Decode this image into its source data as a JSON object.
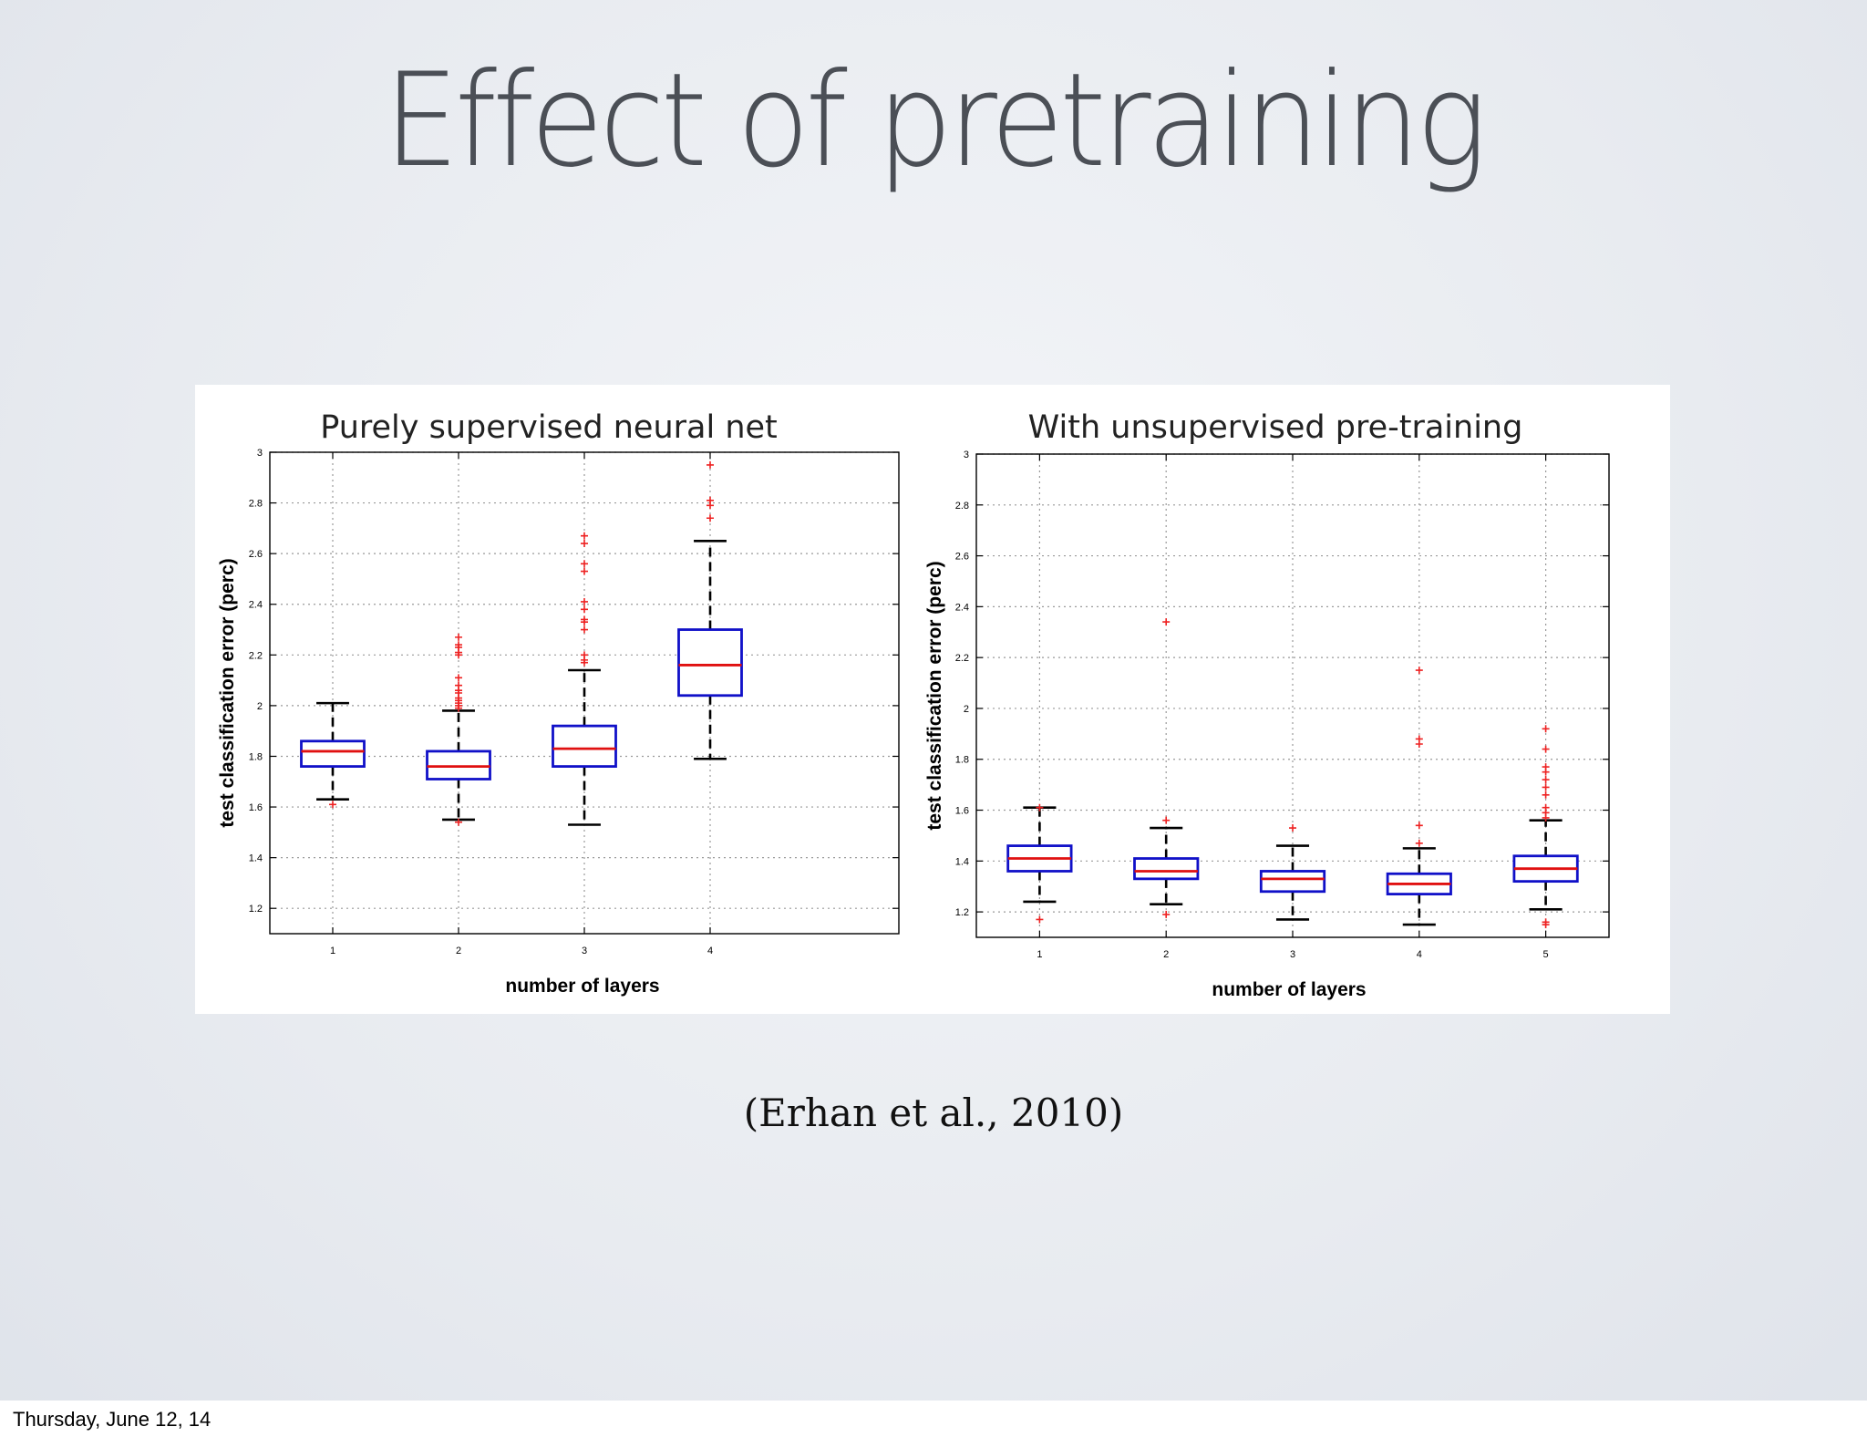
{
  "slide": {
    "title": "Effect of pretraining",
    "citation": "(Erhan et al., 2010)",
    "footer_date": "Thursday, June 12, 14"
  },
  "colors": {
    "box": "#1010c8",
    "median": "#e01010",
    "whisker": "#000000",
    "outlier": "#ee2222",
    "grid": "#999999"
  },
  "chart_data": [
    {
      "type": "box",
      "title": "Purely supervised neural net",
      "xlabel": "number of layers",
      "ylabel": "test classification error (perc)",
      "ylim": [
        1.1,
        3.0
      ],
      "xlim": [
        0.5,
        5.5
      ],
      "grid": true,
      "y_ticks": [
        "1.2",
        "1.4",
        "1.6",
        "1.8",
        "2",
        "2.2",
        "2.4",
        "2.6",
        "2.8",
        "3"
      ],
      "x_ticks": [
        "1",
        "2",
        "3",
        "4"
      ],
      "boxes": [
        {
          "x": 1,
          "whislo": 1.63,
          "q1": 1.76,
          "med": 1.82,
          "q3": 1.86,
          "whishi": 2.01,
          "fliers": [
            1.61
          ]
        },
        {
          "x": 2,
          "whislo": 1.55,
          "q1": 1.71,
          "med": 1.76,
          "q3": 1.82,
          "whishi": 1.98,
          "fliers": [
            1.54,
            1.99,
            2.0,
            2.01,
            2.02,
            2.03,
            2.05,
            2.06,
            2.08,
            2.11,
            2.2,
            2.21,
            2.23,
            2.24,
            2.27
          ]
        },
        {
          "x": 3,
          "whislo": 1.53,
          "q1": 1.76,
          "med": 1.83,
          "q3": 1.92,
          "whishi": 2.14,
          "fliers": [
            2.17,
            2.18,
            2.2,
            2.3,
            2.33,
            2.34,
            2.38,
            2.41,
            2.53,
            2.56,
            2.64,
            2.67
          ]
        },
        {
          "x": 4,
          "whislo": 1.79,
          "q1": 2.04,
          "med": 2.16,
          "q3": 2.3,
          "whishi": 2.65,
          "fliers": [
            2.74,
            2.79,
            2.81,
            2.95
          ]
        }
      ]
    },
    {
      "type": "box",
      "title": "With unsupervised pre-training",
      "xlabel": "number of layers",
      "ylabel": "test classification error (perc)",
      "ylim": [
        1.1,
        3.0
      ],
      "xlim": [
        0.5,
        5.5
      ],
      "grid": true,
      "y_ticks": [
        "1.2",
        "1.4",
        "1.6",
        "1.8",
        "2",
        "2.2",
        "2.4",
        "2.6",
        "2.8",
        "3"
      ],
      "x_ticks": [
        "1",
        "2",
        "3",
        "4",
        "5"
      ],
      "boxes": [
        {
          "x": 1,
          "whislo": 1.24,
          "q1": 1.36,
          "med": 1.41,
          "q3": 1.46,
          "whishi": 1.61,
          "fliers": [
            1.17,
            1.61
          ]
        },
        {
          "x": 2,
          "whislo": 1.23,
          "q1": 1.33,
          "med": 1.36,
          "q3": 1.41,
          "whishi": 1.53,
          "fliers": [
            1.19,
            1.56,
            2.34
          ]
        },
        {
          "x": 3,
          "whislo": 1.17,
          "q1": 1.28,
          "med": 1.33,
          "q3": 1.36,
          "whishi": 1.46,
          "fliers": [
            1.53
          ]
        },
        {
          "x": 4,
          "whislo": 1.15,
          "q1": 1.27,
          "med": 1.31,
          "q3": 1.35,
          "whishi": 1.45,
          "fliers": [
            1.47,
            1.54,
            1.86,
            1.88,
            2.15
          ]
        },
        {
          "x": 5,
          "whislo": 1.21,
          "q1": 1.32,
          "med": 1.37,
          "q3": 1.42,
          "whishi": 1.56,
          "fliers": [
            1.15,
            1.16,
            1.57,
            1.59,
            1.61,
            1.66,
            1.69,
            1.72,
            1.75,
            1.77,
            1.84,
            1.92
          ]
        }
      ]
    }
  ]
}
